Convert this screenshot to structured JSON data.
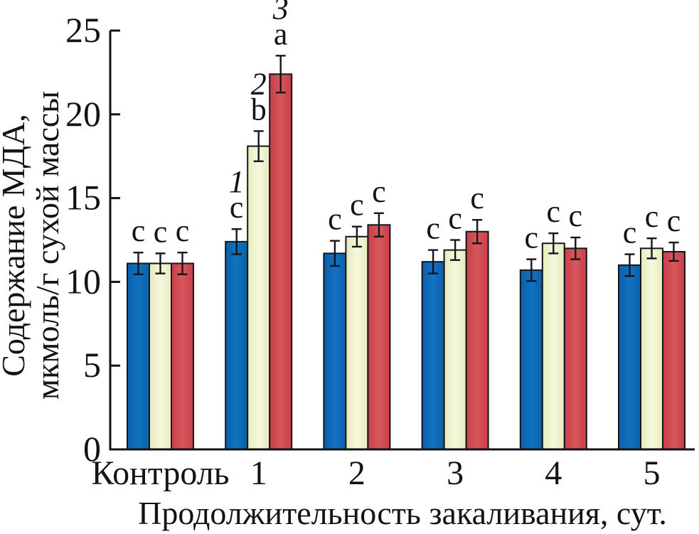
{
  "chart_data": {
    "type": "bar",
    "title": "",
    "ylabel_lines": [
      "Содержание МДА,",
      "мкмоль/г сухой массы"
    ],
    "xlabel": "Продолжительность закаливания, сут.",
    "categories": [
      "Контроль",
      "1",
      "2",
      "3",
      "4",
      "5"
    ],
    "ylim": [
      0,
      25
    ],
    "yticks": [
      0,
      5,
      10,
      15,
      20,
      25
    ],
    "grid": false,
    "legend": "none",
    "axis_color": "#131313",
    "series": [
      {
        "name": "1",
        "color": "#0a60aa",
        "color_light": "#1172bf",
        "values": [
          11.1,
          12.4,
          11.7,
          11.2,
          10.7,
          11.0
        ],
        "errors": [
          0.65,
          0.75,
          0.75,
          0.7,
          0.65,
          0.65
        ],
        "letters": [
          "c",
          "c",
          "c",
          "c",
          "c",
          "c"
        ]
      },
      {
        "name": "2",
        "color": "#e6ebba",
        "color_light": "#f6f8de",
        "values": [
          11.1,
          18.1,
          12.7,
          11.9,
          12.3,
          12.0
        ],
        "errors": [
          0.6,
          0.9,
          0.6,
          0.6,
          0.6,
          0.6
        ],
        "letters": [
          "c",
          "b",
          "c",
          "c",
          "c",
          "c"
        ]
      },
      {
        "name": "3",
        "color": "#c93e46",
        "color_light": "#d7575d",
        "values": [
          11.1,
          22.4,
          13.4,
          13.0,
          12.0,
          11.8
        ],
        "errors": [
          0.65,
          1.1,
          0.7,
          0.7,
          0.65,
          0.55
        ],
        "letters": [
          "c",
          "a",
          "c",
          "c",
          "c",
          "c"
        ]
      }
    ],
    "series_number_labels": {
      "category_index": 1,
      "labels": [
        "1",
        "2",
        "3"
      ]
    }
  }
}
